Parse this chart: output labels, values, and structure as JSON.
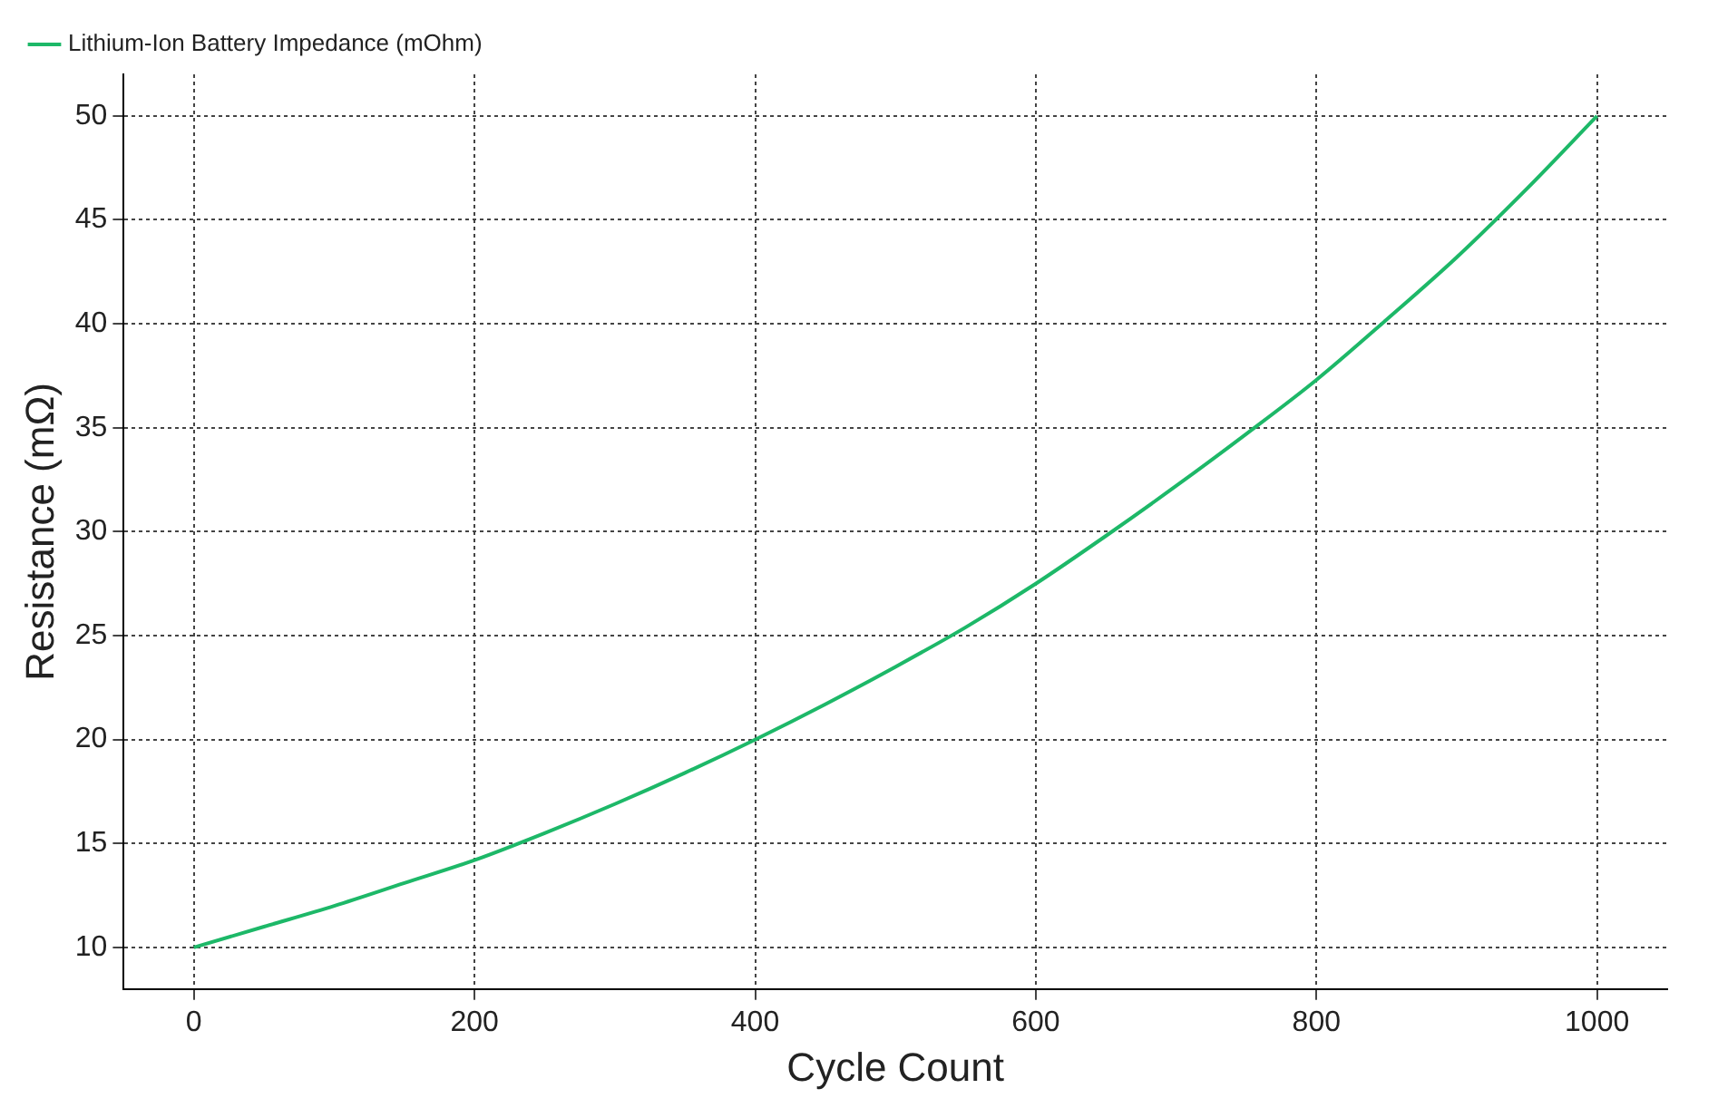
{
  "chart_data": {
    "type": "line",
    "xlabel": "Cycle Count",
    "ylabel": "Resistance (mΩ)",
    "x": [
      0,
      50,
      100,
      150,
      200,
      250,
      300,
      350,
      400,
      450,
      500,
      550,
      600,
      650,
      700,
      750,
      800,
      850,
      900,
      950,
      1000
    ],
    "series": [
      {
        "name": "Lithium-Ion Battery Impedance (mOhm)",
        "color": "#1db868",
        "values": [
          10,
          11,
          12,
          13.1,
          14.2,
          15.5,
          16.9,
          18.4,
          20,
          21.7,
          23.5,
          25.4,
          27.5,
          29.8,
          32.2,
          34.7,
          37.3,
          40.2,
          43.2,
          46.5,
          50
        ]
      }
    ],
    "xlim": [
      -50,
      1050
    ],
    "xticks": [
      0,
      200,
      400,
      600,
      800,
      1000
    ],
    "ylim": [
      8,
      52
    ],
    "yticks": [
      10,
      15,
      20,
      25,
      30,
      35,
      40,
      45,
      50
    ],
    "grid": true,
    "legend": "top left",
    "marker": "none",
    "line_style": "solid"
  }
}
